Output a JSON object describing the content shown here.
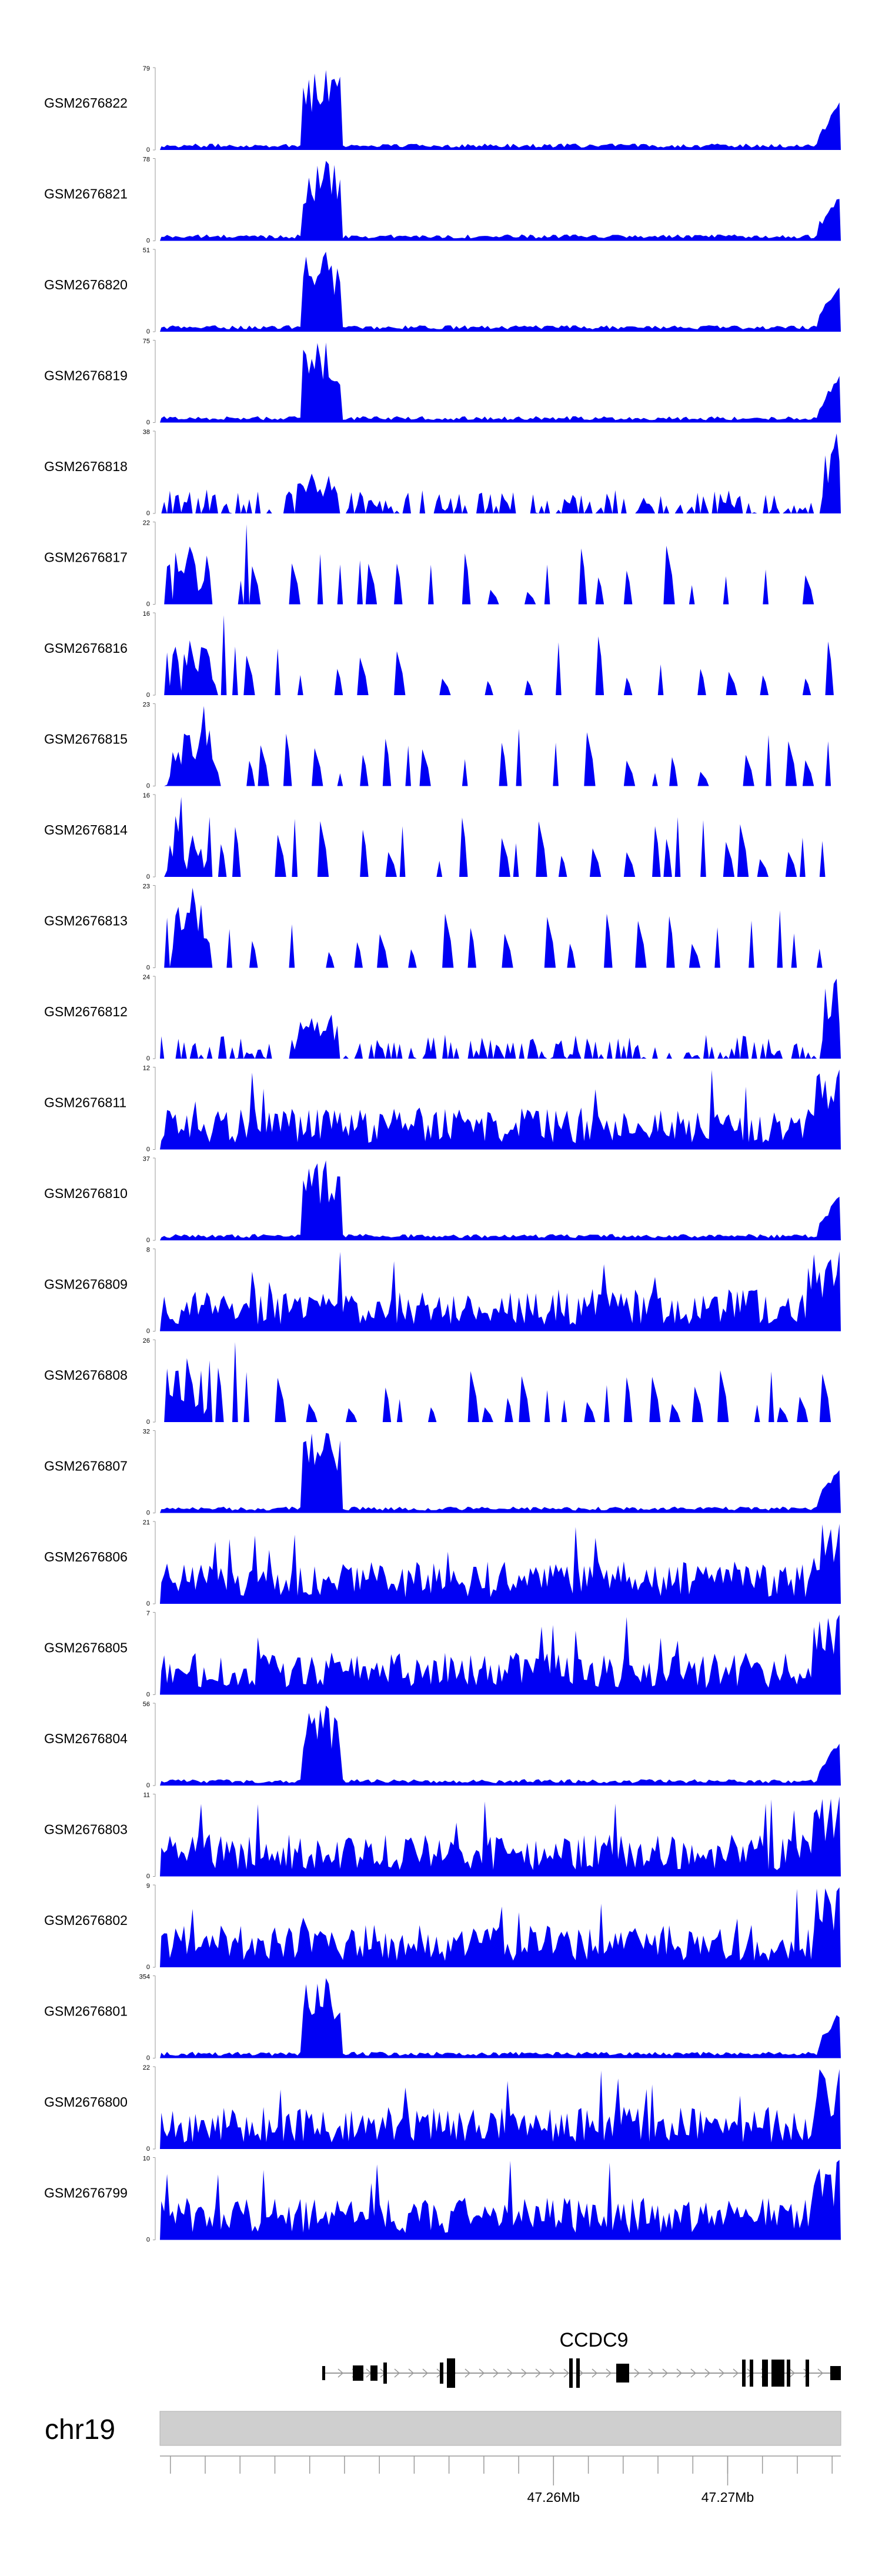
{
  "chart_data": {
    "type": "area",
    "title": "",
    "xlabel": "",
    "ylabel": "",
    "region": {
      "chromosome": "chr19",
      "start_mb": 47.2374,
      "end_mb": 47.2765
    },
    "gene": {
      "name": "CCDC9"
    },
    "axis_ticks": [
      {
        "label": "47.26Mb",
        "value_mb": 47.26
      },
      {
        "label": "47.27Mb",
        "value_mb": 47.27
      }
    ],
    "minor_tick_interval_mb": 0.002,
    "fill_color": "#0000f4",
    "ideogram_color": "#cfcfcf",
    "peak_position_mb": 47.2465,
    "end_signal_mb": 47.2765,
    "series": [
      {
        "name": "GSM2676822",
        "ymax": "79",
        "ymin": "0",
        "profile": "peak"
      },
      {
        "name": "GSM2676821",
        "ymax": "78",
        "ymin": "0",
        "profile": "peak"
      },
      {
        "name": "GSM2676820",
        "ymax": "51",
        "ymin": "0",
        "profile": "peak"
      },
      {
        "name": "GSM2676819",
        "ymax": "75",
        "ymin": "0",
        "profile": "peak"
      },
      {
        "name": "GSM2676818",
        "ymax": "38",
        "ymin": "0",
        "profile": "moderate"
      },
      {
        "name": "GSM2676817",
        "ymax": "22",
        "ymin": "0",
        "profile": "sparse"
      },
      {
        "name": "GSM2676816",
        "ymax": "16",
        "ymin": "0",
        "profile": "sparse"
      },
      {
        "name": "GSM2676815",
        "ymax": "23",
        "ymin": "0",
        "profile": "sparse"
      },
      {
        "name": "GSM2676814",
        "ymax": "16",
        "ymin": "0",
        "profile": "sparse"
      },
      {
        "name": "GSM2676813",
        "ymax": "23",
        "ymin": "0",
        "profile": "sparse"
      },
      {
        "name": "GSM2676812",
        "ymax": "24",
        "ymin": "0",
        "profile": "moderate"
      },
      {
        "name": "GSM2676811",
        "ymax": "12",
        "ymin": "0",
        "profile": "dense"
      },
      {
        "name": "GSM2676810",
        "ymax": "37",
        "ymin": "0",
        "profile": "peak"
      },
      {
        "name": "GSM2676809",
        "ymax": "8",
        "ymin": "0",
        "profile": "dense"
      },
      {
        "name": "GSM2676808",
        "ymax": "26",
        "ymin": "0",
        "profile": "sparse"
      },
      {
        "name": "GSM2676807",
        "ymax": "32",
        "ymin": "0",
        "profile": "peak"
      },
      {
        "name": "GSM2676806",
        "ymax": "21",
        "ymin": "0",
        "profile": "dense"
      },
      {
        "name": "GSM2676805",
        "ymax": "7",
        "ymin": "0",
        "profile": "dense"
      },
      {
        "name": "GSM2676804",
        "ymax": "56",
        "ymin": "0",
        "profile": "peak"
      },
      {
        "name": "GSM2676803",
        "ymax": "11",
        "ymin": "0",
        "profile": "dense"
      },
      {
        "name": "GSM2676802",
        "ymax": "9",
        "ymin": "0",
        "profile": "dense"
      },
      {
        "name": "GSM2676801",
        "ymax": "354",
        "ymin": "0",
        "profile": "peak"
      },
      {
        "name": "GSM2676800",
        "ymax": "22",
        "ymin": "0",
        "profile": "dense"
      },
      {
        "name": "GSM2676799",
        "ymax": "10",
        "ymin": "0",
        "profile": "dense"
      }
    ]
  }
}
